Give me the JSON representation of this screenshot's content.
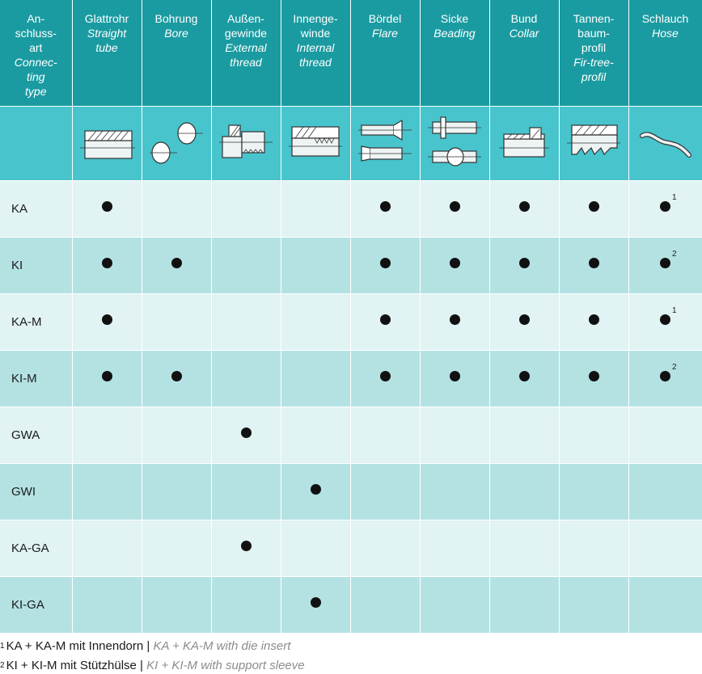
{
  "columns": [
    {
      "de": "An-\nschluss-\nart",
      "en": "Connec-\nting\ntype"
    },
    {
      "de": "Glattrohr",
      "en": "Straight\ntube"
    },
    {
      "de": "Bohrung",
      "en": "Bore"
    },
    {
      "de": "Außen-\ngewinde",
      "en": "External\nthread"
    },
    {
      "de": "Innenge-\nwinde",
      "en": "Internal\nthread"
    },
    {
      "de": "Bördel",
      "en": "Flare"
    },
    {
      "de": "Sicke",
      "en": "Beading"
    },
    {
      "de": "Bund",
      "en": "Collar"
    },
    {
      "de": "Tannen-\nbaum-\nprofil",
      "en": "Fir-tree-\nprofil"
    },
    {
      "de": "Schlauch",
      "en": "Hose"
    }
  ],
  "icons": [
    "straight-tube-drawing",
    "bore-drawing",
    "external-thread-drawing",
    "internal-thread-drawing",
    "flare-drawing",
    "beading-drawing",
    "collar-drawing",
    "fir-tree-profile-drawing",
    "hose-drawing"
  ],
  "rows": [
    {
      "label": "KA",
      "marks": [
        true,
        false,
        false,
        false,
        true,
        true,
        true,
        true,
        true
      ],
      "hose_note": "1"
    },
    {
      "label": "KI",
      "marks": [
        true,
        true,
        false,
        false,
        true,
        true,
        true,
        true,
        true
      ],
      "hose_note": "2"
    },
    {
      "label": "KA-M",
      "marks": [
        true,
        false,
        false,
        false,
        true,
        true,
        true,
        true,
        true
      ],
      "hose_note": "1"
    },
    {
      "label": "KI-M",
      "marks": [
        true,
        true,
        false,
        false,
        true,
        true,
        true,
        true,
        true
      ],
      "hose_note": "2"
    },
    {
      "label": "GWA",
      "marks": [
        false,
        false,
        true,
        false,
        false,
        false,
        false,
        false,
        false
      ],
      "hose_note": ""
    },
    {
      "label": "GWI",
      "marks": [
        false,
        false,
        false,
        true,
        false,
        false,
        false,
        false,
        false
      ],
      "hose_note": ""
    },
    {
      "label": "KA-GA",
      "marks": [
        false,
        false,
        true,
        false,
        false,
        false,
        false,
        false,
        false
      ],
      "hose_note": ""
    },
    {
      "label": "KI-GA",
      "marks": [
        false,
        false,
        false,
        true,
        false,
        false,
        false,
        false,
        false
      ],
      "hose_note": ""
    }
  ],
  "footnotes": [
    {
      "num": "1",
      "de": "KA + KA-M mit Innendorn | ",
      "en": "KA + KA-M with die insert"
    },
    {
      "num": "2",
      "de": "KI + KI-M mit Stützhülse | ",
      "en": "KI + KI-M with support sleeve"
    }
  ],
  "colors": {
    "header": "#1a9ba1",
    "icon_row": "#48c4cc",
    "row_light": "#e1f3f3",
    "row_dark": "#b4e2e3"
  }
}
